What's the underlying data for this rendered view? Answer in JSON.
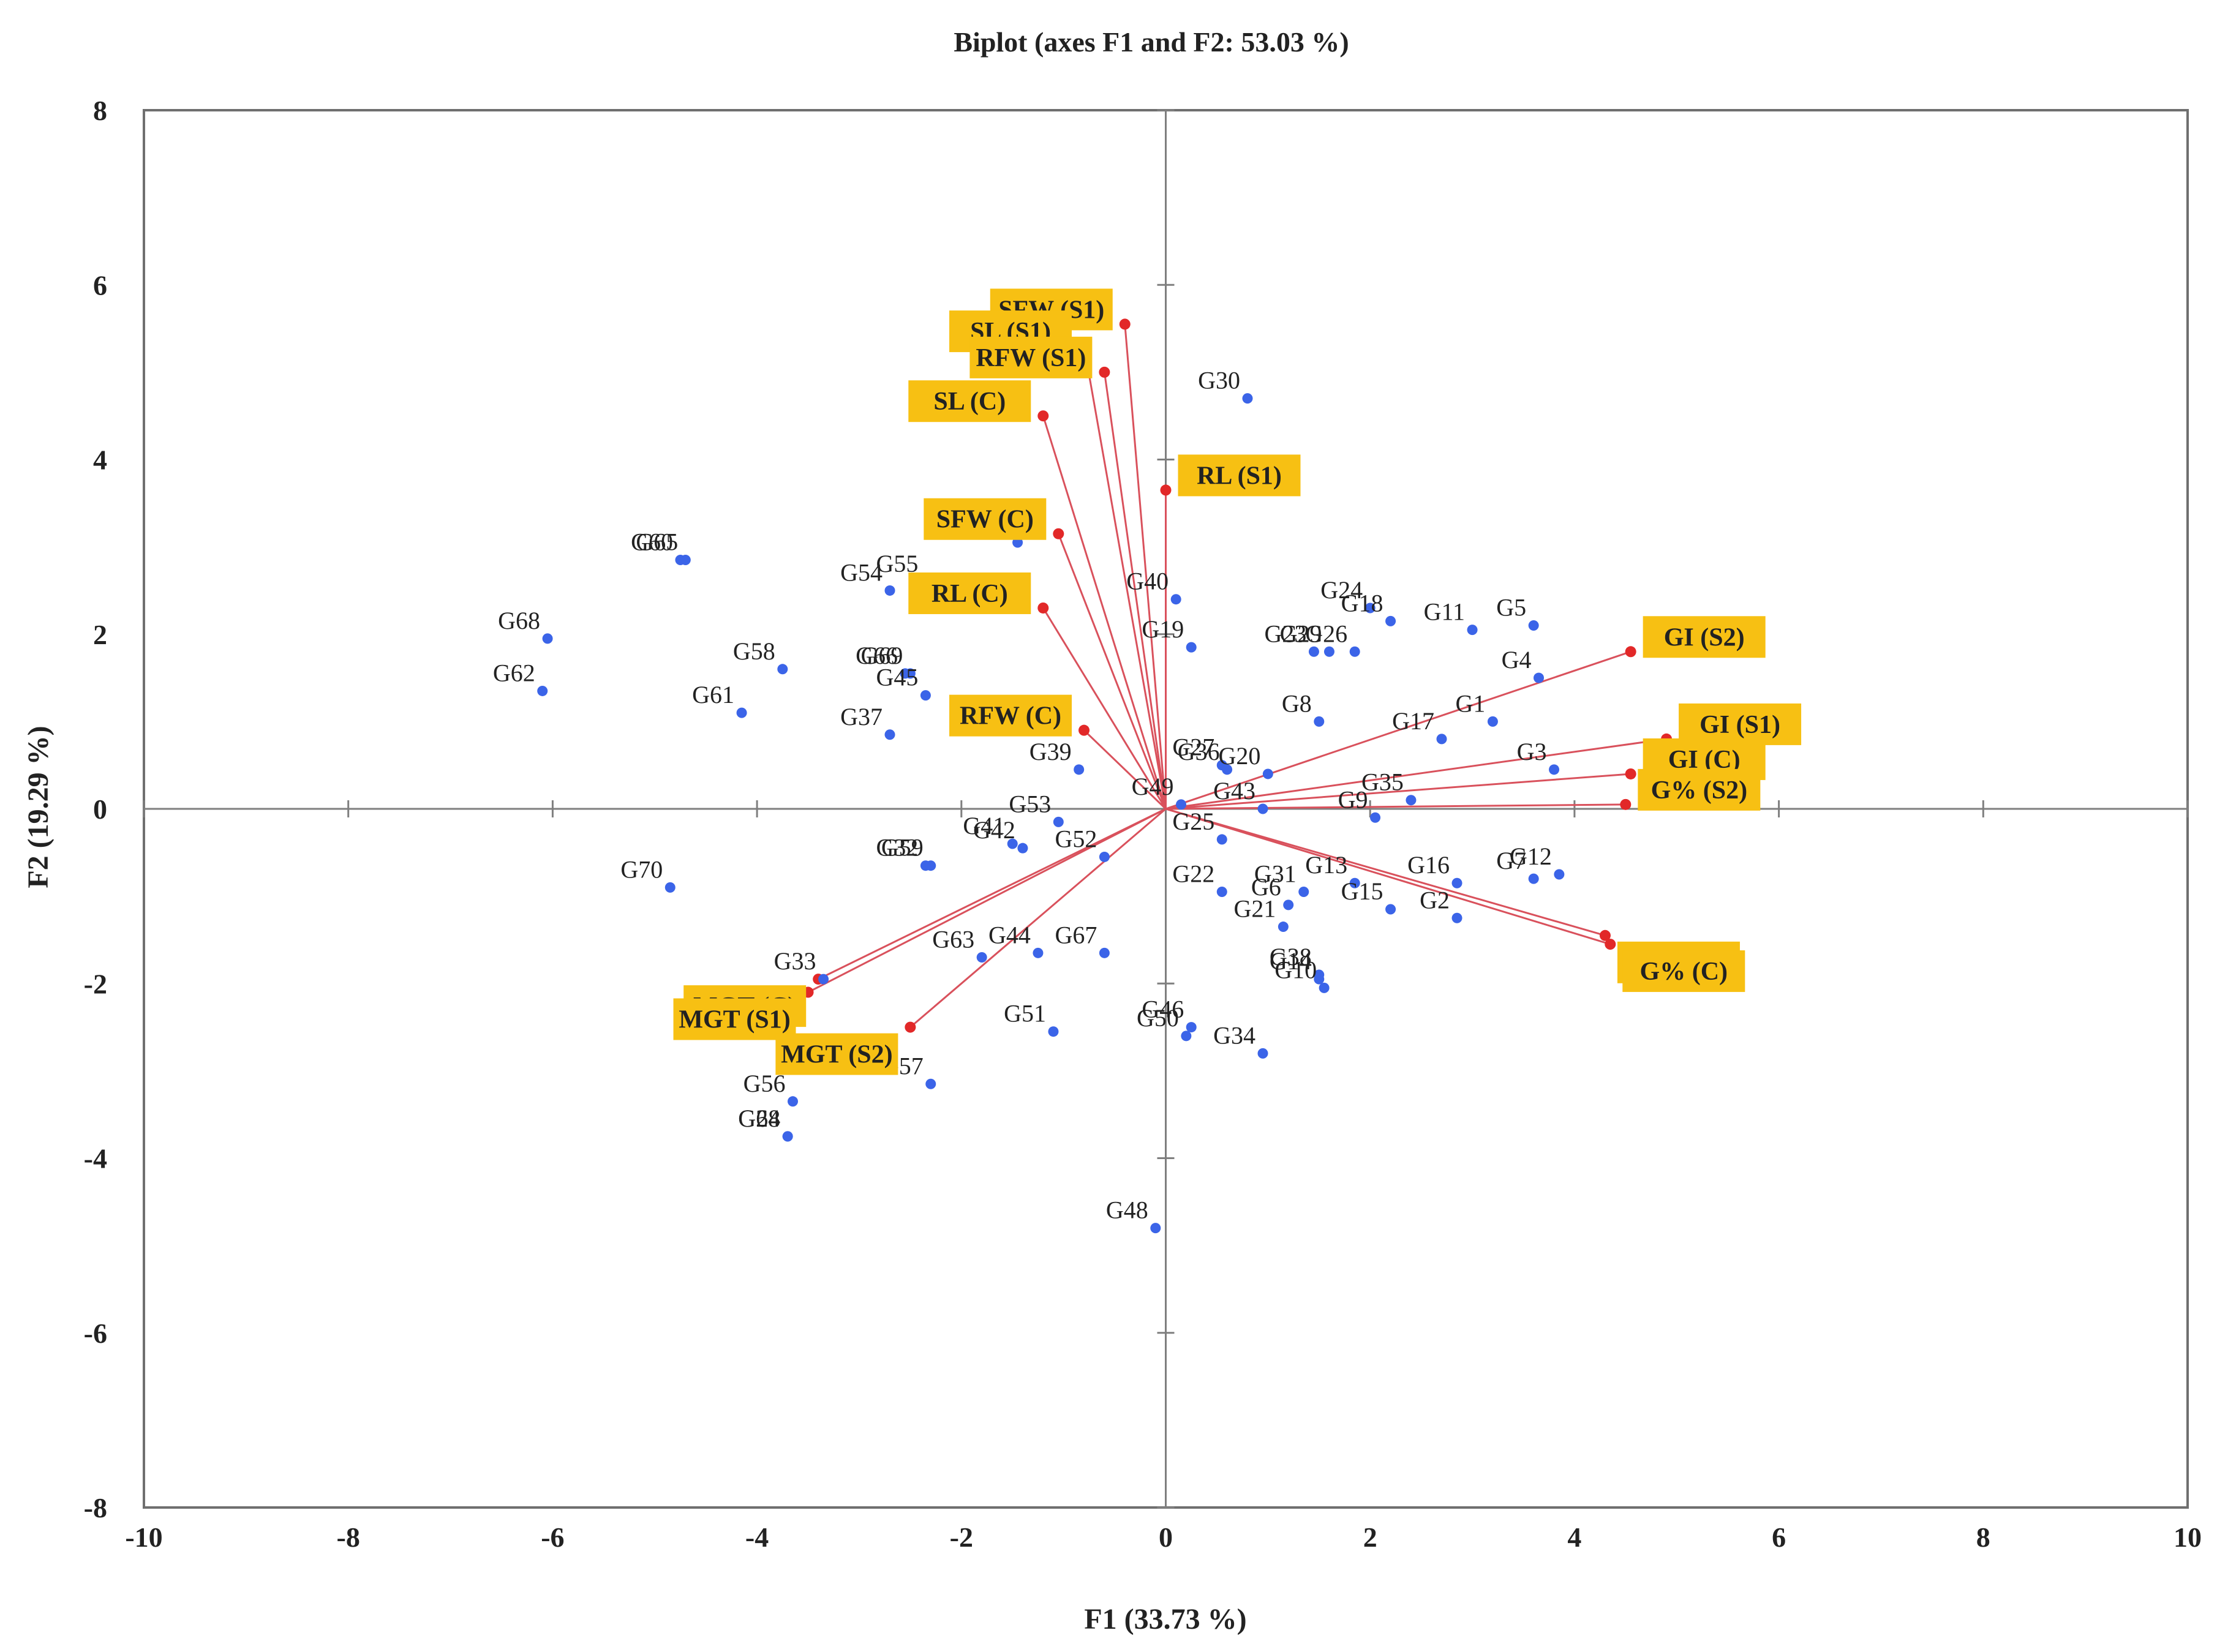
{
  "chart_data": {
    "type": "scatter",
    "title": "Biplot (axes F1 and F2: 53.03 %)",
    "xlabel": "F1 (33.73 %)",
    "ylabel": "F2 (19.29 %)",
    "xlim": [
      -10,
      10
    ],
    "ylim": [
      -8,
      8
    ],
    "xticks": [
      "-10",
      "-8",
      "-6",
      "-4",
      "-2",
      "0",
      "2",
      "4",
      "6",
      "8",
      "10"
    ],
    "yticks": [
      "-8",
      "-6",
      "-4",
      "-2",
      "0",
      "2",
      "4",
      "6",
      "8"
    ],
    "colors": {
      "points": "#3b64e8",
      "vectors": "#e22828",
      "vector_lines": "#d9515c",
      "label_box": "#f7c013",
      "axis": "#7f7f7f"
    },
    "observations": [
      {
        "name": "G1",
        "x": 3.2,
        "y": 1.0
      },
      {
        "name": "G2",
        "x": 2.85,
        "y": -1.25
      },
      {
        "name": "G3",
        "x": 3.8,
        "y": 0.45
      },
      {
        "name": "G4",
        "x": 3.65,
        "y": 1.5
      },
      {
        "name": "G5",
        "x": 3.6,
        "y": 2.1
      },
      {
        "name": "G6",
        "x": 1.2,
        "y": -1.1
      },
      {
        "name": "G7",
        "x": 3.6,
        "y": -0.8
      },
      {
        "name": "G8",
        "x": 1.5,
        "y": 1.0
      },
      {
        "name": "G9",
        "x": 2.05,
        "y": -0.1
      },
      {
        "name": "G10",
        "x": 1.55,
        "y": -2.05
      },
      {
        "name": "G11",
        "x": 3.0,
        "y": 2.05
      },
      {
        "name": "G12",
        "x": 3.85,
        "y": -0.75
      },
      {
        "name": "G13",
        "x": 1.85,
        "y": -0.85
      },
      {
        "name": "G14",
        "x": 1.5,
        "y": -1.95
      },
      {
        "name": "G15",
        "x": 2.2,
        "y": -1.15
      },
      {
        "name": "G16",
        "x": 2.85,
        "y": -0.85
      },
      {
        "name": "G17",
        "x": 2.7,
        "y": 0.8
      },
      {
        "name": "G18",
        "x": 2.2,
        "y": 2.15
      },
      {
        "name": "G19",
        "x": 0.25,
        "y": 1.85
      },
      {
        "name": "G20",
        "x": 1.0,
        "y": 0.4
      },
      {
        "name": "G21",
        "x": 1.15,
        "y": -1.35
      },
      {
        "name": "G22",
        "x": 0.55,
        "y": -0.95
      },
      {
        "name": "G23",
        "x": 1.45,
        "y": 1.8
      },
      {
        "name": "G24",
        "x": 2.0,
        "y": 2.3
      },
      {
        "name": "G25",
        "x": 0.55,
        "y": -0.35
      },
      {
        "name": "G26",
        "x": 1.85,
        "y": 1.8
      },
      {
        "name": "G27",
        "x": 0.55,
        "y": 0.5
      },
      {
        "name": "G28",
        "x": -3.7,
        "y": -3.75
      },
      {
        "name": "G29",
        "x": 1.6,
        "y": 1.8
      },
      {
        "name": "G30",
        "x": 0.8,
        "y": 4.7
      },
      {
        "name": "G31",
        "x": 1.35,
        "y": -0.95
      },
      {
        "name": "G32",
        "x": -2.35,
        "y": -0.65
      },
      {
        "name": "G33",
        "x": -3.35,
        "y": -1.95
      },
      {
        "name": "G34",
        "x": 0.95,
        "y": -2.8
      },
      {
        "name": "G35",
        "x": 2.4,
        "y": 0.1
      },
      {
        "name": "G36",
        "x": 0.6,
        "y": 0.45
      },
      {
        "name": "G37",
        "x": -2.7,
        "y": 0.85
      },
      {
        "name": "G38",
        "x": 1.5,
        "y": -1.9
      },
      {
        "name": "G39",
        "x": -0.85,
        "y": 0.45
      },
      {
        "name": "G40",
        "x": 0.1,
        "y": 2.4
      },
      {
        "name": "G41",
        "x": -1.5,
        "y": -0.4
      },
      {
        "name": "G42",
        "x": -1.4,
        "y": -0.45
      },
      {
        "name": "G43",
        "x": 0.95,
        "y": 0.0
      },
      {
        "name": "G44",
        "x": -1.25,
        "y": -1.65
      },
      {
        "name": "G45",
        "x": -2.35,
        "y": 1.3
      },
      {
        "name": "G46",
        "x": 0.25,
        "y": -2.5
      },
      {
        "name": "G47",
        "x": -1.45,
        "y": 3.05
      },
      {
        "name": "G48",
        "x": -0.1,
        "y": -4.8
      },
      {
        "name": "G49",
        "x": 0.15,
        "y": 0.05
      },
      {
        "name": "G50",
        "x": 0.2,
        "y": -2.6
      },
      {
        "name": "G51",
        "x": -1.1,
        "y": -2.55
      },
      {
        "name": "G52",
        "x": -0.6,
        "y": -0.55
      },
      {
        "name": "G53",
        "x": -1.05,
        "y": -0.15
      },
      {
        "name": "G54",
        "x": -2.7,
        "y": 2.5
      },
      {
        "name": "G55",
        "x": -2.35,
        "y": 2.6
      },
      {
        "name": "G56",
        "x": -3.65,
        "y": -3.35
      },
      {
        "name": "G57",
        "x": -2.3,
        "y": -3.15
      },
      {
        "name": "G58",
        "x": -3.75,
        "y": 1.6
      },
      {
        "name": "G59",
        "x": -2.3,
        "y": -0.65
      },
      {
        "name": "G60",
        "x": -4.75,
        "y": 2.85
      },
      {
        "name": "G61",
        "x": -4.15,
        "y": 1.1
      },
      {
        "name": "G62",
        "x": -6.1,
        "y": 1.35
      },
      {
        "name": "G63",
        "x": -1.8,
        "y": -1.7
      },
      {
        "name": "G64",
        "x": -3.7,
        "y": -3.75
      },
      {
        "name": "G65",
        "x": -4.7,
        "y": 2.85
      },
      {
        "name": "G66",
        "x": -2.55,
        "y": 1.55
      },
      {
        "name": "G67",
        "x": -0.6,
        "y": -1.65
      },
      {
        "name": "G68",
        "x": -6.05,
        "y": 1.95
      },
      {
        "name": "G69",
        "x": -2.5,
        "y": 1.55
      },
      {
        "name": "G70",
        "x": -4.85,
        "y": -0.9
      }
    ],
    "variables": [
      {
        "name": "SFW (S1)",
        "x": -0.4,
        "y": 5.55
      },
      {
        "name": "SL (S1)",
        "x": -0.8,
        "y": 5.3
      },
      {
        "name": "RFW (S1)",
        "x": -0.6,
        "y": 5.0
      },
      {
        "name": "SL (C)",
        "x": -1.2,
        "y": 4.5
      },
      {
        "name": "RL (S1)",
        "x": 0.0,
        "y": 3.65
      },
      {
        "name": "SFW (C)",
        "x": -1.05,
        "y": 3.15
      },
      {
        "name": "RL (C)",
        "x": -1.2,
        "y": 2.3
      },
      {
        "name": "RFW (C)",
        "x": -0.8,
        "y": 0.9
      },
      {
        "name": "GI (S2)",
        "x": 4.55,
        "y": 1.8
      },
      {
        "name": "GI (S1)",
        "x": 4.9,
        "y": 0.8
      },
      {
        "name": "GI (C)",
        "x": 4.55,
        "y": 0.4
      },
      {
        "name": "G% (S2)",
        "x": 4.5,
        "y": 0.05
      },
      {
        "name": "G% (S1)",
        "x": 4.3,
        "y": -1.45
      },
      {
        "name": "G% (C)",
        "x": 4.35,
        "y": -1.55
      },
      {
        "name": "MGT (C)",
        "x": -3.4,
        "y": -1.95
      },
      {
        "name": "MGT (S1)",
        "x": -3.5,
        "y": -2.1
      },
      {
        "name": "MGT (S2)",
        "x": -2.5,
        "y": -2.5
      }
    ]
  }
}
